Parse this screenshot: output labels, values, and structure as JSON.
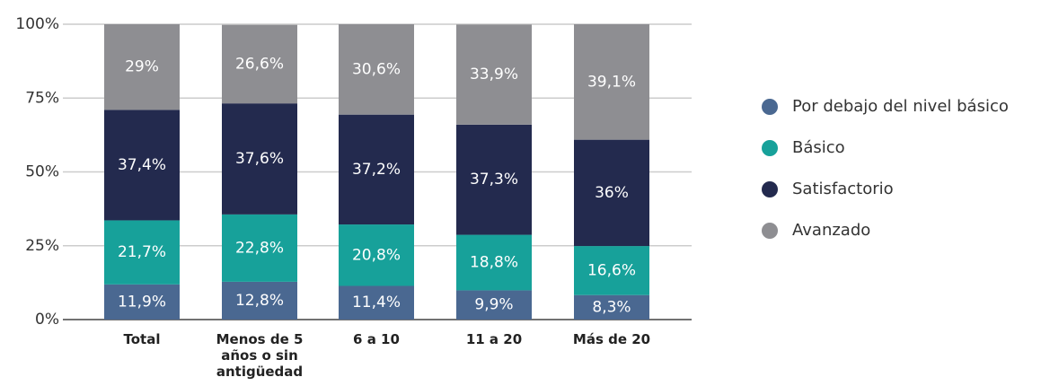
{
  "chart_data": {
    "type": "stacked_bar",
    "categories": [
      "Total",
      "Menos de 5 años o sin antigüedad",
      "6 a 10",
      "11 a 20",
      "Más de 20"
    ],
    "series": [
      {
        "name": "Por debajo del nivel básico",
        "color": "#4a6891",
        "values": [
          11.9,
          12.8,
          11.4,
          9.9,
          8.3
        ],
        "value_labels": [
          "11,9%",
          "12,8%",
          "11,4%",
          "9,9%",
          "8,3%"
        ]
      },
      {
        "name": "Básico",
        "color": "#17a19a",
        "values": [
          21.7,
          22.8,
          20.8,
          18.8,
          16.6
        ],
        "value_labels": [
          "21,7%",
          "22,8%",
          "20,8%",
          "18,8%",
          "16,6%"
        ]
      },
      {
        "name": "Satisfactorio",
        "color": "#232a4e",
        "values": [
          37.4,
          37.6,
          37.2,
          37.3,
          36
        ],
        "value_labels": [
          "37,4%",
          "37,6%",
          "37,2%",
          "37,3%",
          "36%"
        ]
      },
      {
        "name": "Avanzado",
        "color": "#8e8e92",
        "values": [
          29,
          26.6,
          30.6,
          33.9,
          39.1
        ],
        "value_labels": [
          "29%",
          "26,6%",
          "30,6%",
          "33,9%",
          "39,1%"
        ]
      }
    ],
    "ylim": [
      0,
      100
    ],
    "yticks": [
      {
        "value": 0,
        "label": "0%"
      },
      {
        "value": 25,
        "label": "25%"
      },
      {
        "value": 50,
        "label": "50%"
      },
      {
        "value": 75,
        "label": "75%"
      },
      {
        "value": 100,
        "label": "100%"
      }
    ],
    "grid": true,
    "legend": "right"
  }
}
